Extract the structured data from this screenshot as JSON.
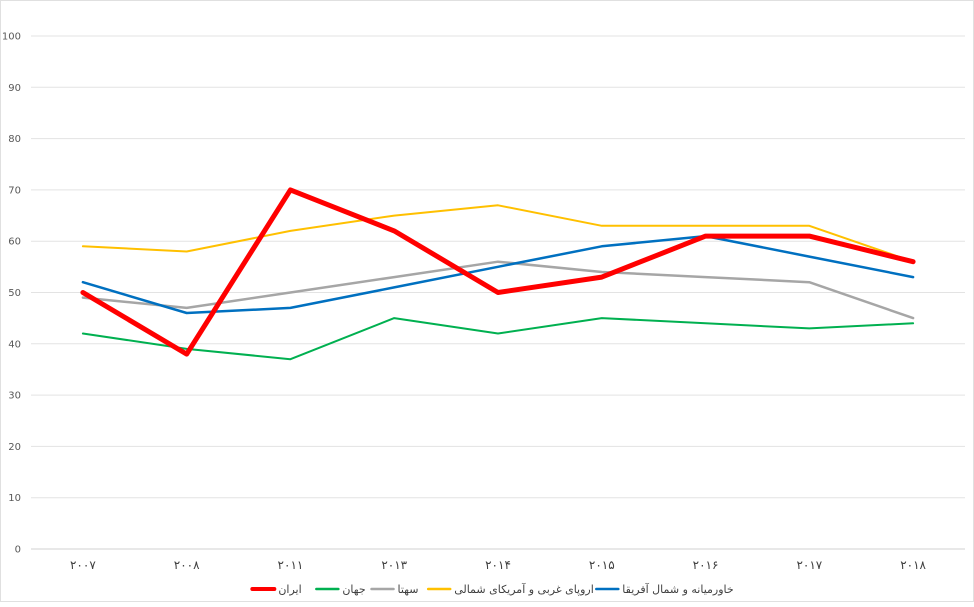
{
  "chart_data": {
    "type": "line",
    "title": "",
    "xlabel": "",
    "ylabel": "",
    "categories": [
      "۲۰۰۷",
      "۲۰۰۸",
      "۲۰۱۱",
      "۲۰۱۳",
      "۲۰۱۴",
      "۲۰۱۵",
      "۲۰۱۶",
      "۲۰۱۷",
      "۲۰۱۸"
    ],
    "ylim": [
      0,
      100
    ],
    "yticks": [
      "0",
      "10",
      "20",
      "30",
      "40",
      "50",
      "60",
      "70",
      "80",
      "90",
      "100"
    ],
    "grid": true,
    "legend_position": "bottom",
    "series": [
      {
        "name": "ایران",
        "color": "#ff0000",
        "width": 5,
        "values": [
          50,
          38,
          70,
          62,
          50,
          53,
          61,
          61,
          56
        ]
      },
      {
        "name": "جهان",
        "color": "#00b050",
        "width": 2,
        "values": [
          42,
          39,
          37,
          45,
          42,
          45,
          44,
          43,
          44
        ]
      },
      {
        "name": "سهتا",
        "color": "#a6a6a6",
        "width": 2.5,
        "values": [
          49,
          47,
          50,
          53,
          56,
          54,
          53,
          52,
          45
        ]
      },
      {
        "name": "اروپای غربی و آمریکای شمالی",
        "color": "#ffc000",
        "width": 2,
        "values": [
          59,
          58,
          62,
          65,
          67,
          63,
          63,
          63,
          56
        ]
      },
      {
        "name": "خاورمیانه و شمال آفریقا",
        "color": "#0070c0",
        "width": 2.5,
        "values": [
          52,
          46,
          47,
          51,
          55,
          59,
          61,
          57,
          53
        ]
      }
    ]
  }
}
